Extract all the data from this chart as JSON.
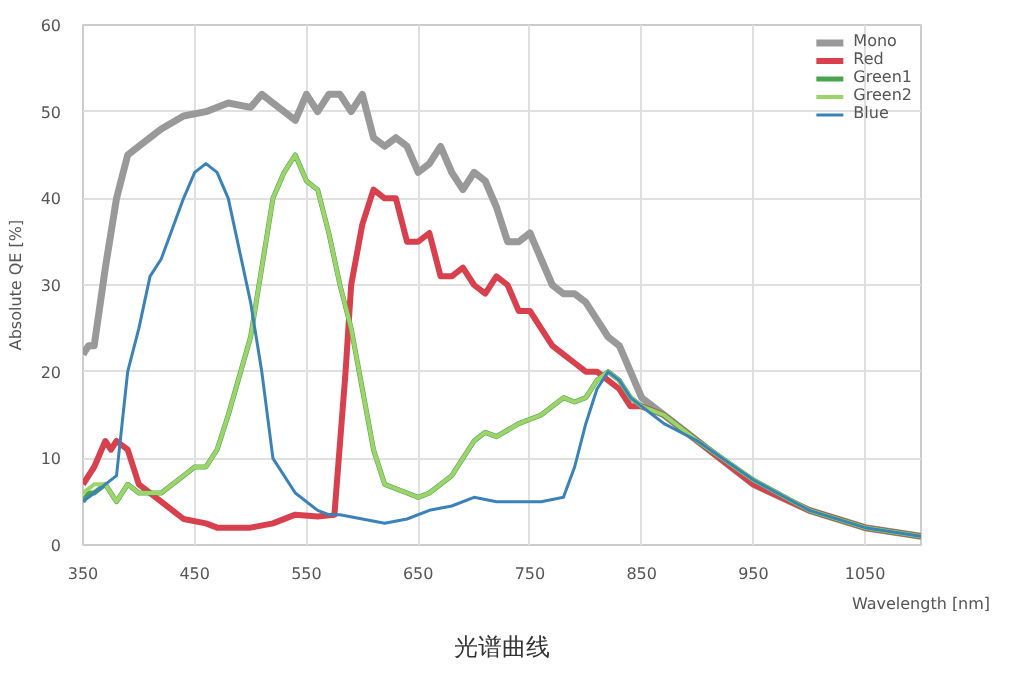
{
  "chart_data": {
    "type": "line",
    "xlabel": "Wavelength [nm]",
    "ylabel": "Absolute QE [%]",
    "xlim": [
      350,
      1100
    ],
    "ylim": [
      0,
      60
    ],
    "xticks": [
      350,
      450,
      550,
      650,
      750,
      850,
      950,
      1050
    ],
    "yticks": [
      0,
      10,
      20,
      30,
      40,
      50,
      60
    ],
    "grid": true,
    "legend": "top right",
    "line_style": "solid",
    "annotations": [
      "光谱曲线"
    ],
    "series": [
      {
        "name": "Mono",
        "color": "#999999",
        "x": [
          350,
          355,
          360,
          370,
          380,
          390,
          400,
          420,
          440,
          460,
          480,
          500,
          510,
          520,
          540,
          550,
          560,
          570,
          580,
          590,
          600,
          610,
          620,
          630,
          640,
          650,
          660,
          670,
          680,
          690,
          700,
          710,
          720,
          730,
          740,
          750,
          760,
          770,
          780,
          790,
          800,
          810,
          820,
          830,
          840,
          850,
          870,
          900,
          950,
          1000,
          1050,
          1100
        ],
        "values": [
          22,
          23,
          23,
          32,
          40,
          45,
          46,
          48,
          49.5,
          50,
          51,
          50.5,
          52,
          51,
          49,
          52,
          50,
          52,
          52,
          50,
          52,
          47,
          46,
          47,
          46,
          43,
          44,
          46,
          43,
          41,
          43,
          42,
          39,
          35,
          35,
          36,
          33,
          30,
          29,
          29,
          28,
          26,
          24,
          23,
          20,
          17,
          15,
          12,
          7,
          4,
          2,
          1
        ]
      },
      {
        "name": "Red",
        "color": "#d9404d",
        "x": [
          350,
          360,
          370,
          375,
          380,
          390,
          400,
          420,
          440,
          460,
          470,
          500,
          520,
          540,
          560,
          575,
          585,
          590,
          600,
          610,
          620,
          630,
          640,
          650,
          660,
          670,
          680,
          690,
          700,
          710,
          720,
          730,
          740,
          750,
          760,
          770,
          780,
          790,
          800,
          810,
          820,
          830,
          840,
          850,
          870,
          900,
          950,
          1000,
          1050,
          1100
        ],
        "values": [
          7,
          9,
          12,
          11,
          12,
          11,
          7,
          5,
          3,
          2.5,
          2,
          2,
          2.5,
          3.5,
          3.3,
          3.5,
          20,
          30,
          37,
          41,
          40,
          40,
          35,
          35,
          36,
          31,
          31,
          32,
          30,
          29,
          31,
          30,
          27,
          27,
          25,
          23,
          22,
          21,
          20,
          20,
          19,
          18,
          16,
          16,
          15,
          12,
          7,
          4,
          2,
          1
        ]
      },
      {
        "name": "Green1",
        "color": "#4aa34f",
        "x": [
          350,
          355,
          360,
          370,
          380,
          390,
          400,
          420,
          440,
          450,
          460,
          470,
          480,
          500,
          510,
          520,
          530,
          540,
          550,
          560,
          570,
          580,
          590,
          600,
          610,
          620,
          640,
          650,
          660,
          680,
          700,
          710,
          720,
          740,
          760,
          780,
          790,
          800,
          810,
          820,
          830,
          840,
          850,
          870,
          900,
          950,
          1000,
          1050,
          1100
        ],
        "values": [
          5,
          6,
          6,
          7,
          5,
          7,
          6,
          6,
          8,
          9,
          9,
          11,
          15,
          24,
          32,
          40,
          43,
          45,
          42,
          41,
          36,
          30,
          25,
          18,
          11,
          7,
          6,
          5.5,
          6,
          8,
          12,
          13,
          12.5,
          14,
          15,
          17,
          16.5,
          17,
          19,
          20,
          19,
          17,
          16,
          15,
          12,
          7.5,
          4,
          2,
          1
        ]
      },
      {
        "name": "Green2",
        "color": "#9dd46a",
        "x": [
          350,
          360,
          370,
          380,
          390,
          400,
          420,
          440,
          450,
          460,
          470,
          480,
          500,
          510,
          520,
          530,
          540,
          550,
          560,
          570,
          580,
          590,
          600,
          610,
          620,
          640,
          650,
          660,
          680,
          700,
          710,
          720,
          740,
          760,
          780,
          790,
          800,
          810,
          820,
          830,
          840,
          850,
          870,
          900,
          950,
          1000,
          1050,
          1100
        ],
        "values": [
          6,
          7,
          7,
          5,
          7,
          6,
          6,
          8,
          9,
          9,
          11,
          15,
          24,
          32,
          40,
          43,
          45,
          42,
          41,
          36,
          30,
          25,
          18,
          11,
          7,
          6,
          5.5,
          6,
          8,
          12,
          13,
          12.5,
          14,
          15,
          17,
          16.5,
          17,
          19,
          20,
          19,
          17,
          16,
          15,
          12,
          7.5,
          4,
          2,
          1
        ]
      },
      {
        "name": "Blue",
        "color": "#3a82b8",
        "x": [
          350,
          360,
          370,
          380,
          390,
          400,
          410,
          420,
          440,
          450,
          460,
          470,
          480,
          490,
          500,
          510,
          520,
          540,
          560,
          570,
          580,
          600,
          620,
          640,
          660,
          680,
          700,
          720,
          740,
          760,
          780,
          790,
          800,
          810,
          820,
          830,
          840,
          850,
          860,
          870,
          900,
          950,
          1000,
          1050,
          1100
        ],
        "values": [
          5,
          6,
          7,
          8,
          20,
          25,
          31,
          33,
          40,
          43,
          44,
          43,
          40,
          34,
          28,
          20,
          10,
          6,
          4,
          3.5,
          3.5,
          3,
          2.5,
          3,
          4,
          4.5,
          5.5,
          5,
          5,
          5,
          5.5,
          9,
          14,
          18,
          20,
          19,
          17,
          16,
          15,
          14,
          12,
          7.5,
          4,
          2,
          1
        ]
      }
    ]
  }
}
